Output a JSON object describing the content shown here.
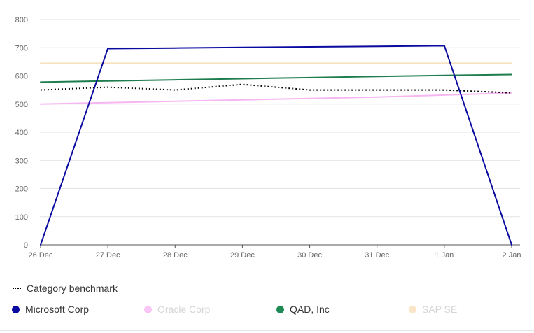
{
  "chart_data": {
    "type": "line",
    "title": "",
    "xlabel": "",
    "ylabel": "",
    "x": [
      "26 Dec",
      "27 Dec",
      "28 Dec",
      "29 Dec",
      "30 Dec",
      "31 Dec",
      "1 Jan",
      "2 Jan"
    ],
    "yticks": [
      "0",
      "100",
      "200",
      "300",
      "400",
      "500",
      "600",
      "700",
      "800"
    ],
    "ylim": [
      0,
      800
    ],
    "grid": true,
    "legend_position": "bottom",
    "series": [
      {
        "name": "Microsoft Corp",
        "color": "#0a0aa0",
        "style": "solid",
        "legend_state": "active",
        "values": [
          0,
          697,
          699,
          701,
          703,
          705,
          707,
          0
        ]
      },
      {
        "name": "Oracle Corp",
        "color": "#f5b6f2",
        "style": "solid",
        "legend_state": "inactive",
        "values": [
          500,
          505,
          510,
          515,
          520,
          525,
          532,
          540
        ]
      },
      {
        "name": "QAD, Inc",
        "color": "#1e7d4e",
        "style": "solid",
        "legend_state": "active",
        "values": [
          578,
          582,
          586,
          590,
          594,
          598,
          602,
          605
        ]
      },
      {
        "name": "SAP SE",
        "color": "#f7e2bf",
        "style": "solid",
        "legend_state": "inactive",
        "values": [
          645,
          645,
          645,
          645,
          645,
          645,
          645,
          645
        ]
      },
      {
        "name": "Category benchmark",
        "color": "#000000",
        "style": "dotted",
        "legend_state": "active",
        "values": [
          550,
          560,
          550,
          570,
          550,
          550,
          550,
          540
        ]
      }
    ]
  },
  "legend": {
    "benchmark_label": "Category benchmark",
    "items": [
      {
        "label": "Microsoft Corp",
        "color": "#0a0aa0"
      },
      {
        "label": "Oracle Corp",
        "color": "#f9c6f6"
      },
      {
        "label": "QAD, Inc",
        "color": "#1e8a55"
      },
      {
        "label": "SAP SE",
        "color": "#f9e6c8"
      }
    ]
  }
}
